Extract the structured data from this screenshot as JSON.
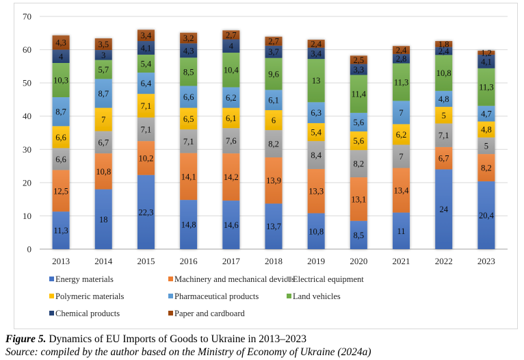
{
  "chart_data": {
    "type": "bar",
    "stacked": true,
    "title": "",
    "xlabel": "",
    "ylabel": "",
    "ylim": [
      0,
      70
    ],
    "yticks": [
      0,
      10,
      20,
      30,
      40,
      50,
      60,
      70
    ],
    "grid": true,
    "legend_position": "bottom",
    "categories": [
      "2013",
      "2014",
      "2015",
      "2016",
      "2017",
      "2018",
      "2019",
      "2020",
      "2021",
      "2022",
      "2023"
    ],
    "series": [
      {
        "name": "Energy materials",
        "color": "#4472c4",
        "values": [
          11.3,
          18,
          22.3,
          14.8,
          14.6,
          13.7,
          10.8,
          8.5,
          11,
          24,
          20.4
        ],
        "labels": [
          "11,3",
          "18",
          "22,3",
          "14,8",
          "14,6",
          "13,7",
          "10,8",
          "8,5",
          "11",
          "24",
          "20,4"
        ]
      },
      {
        "name": "Machinery and mechanical devices",
        "color": "#ed7d31",
        "values": [
          12.5,
          10.8,
          10.2,
          14.1,
          14.2,
          13.9,
          13.3,
          13.1,
          13.4,
          6.7,
          8.2
        ],
        "labels": [
          "12,5",
          "10,8",
          "10,2",
          "14,1",
          "14,2",
          "13,9",
          "13,3",
          "13,1",
          "13,4",
          "6,7",
          "8,2"
        ]
      },
      {
        "name": "Electrical equipment",
        "color": "#a5a5a5",
        "values": [
          6.6,
          6.7,
          7.1,
          7.1,
          7.6,
          8.2,
          8.4,
          8.2,
          7,
          7.1,
          5
        ],
        "labels": [
          "6,6",
          "6,7",
          "7,1",
          "7,1",
          "7,6",
          "8,2",
          "8,4",
          "8,2",
          "7",
          "7,1",
          "5"
        ]
      },
      {
        "name": "Polymeric materials",
        "color": "#ffc000",
        "values": [
          6.6,
          7,
          7.1,
          6.5,
          6.1,
          6,
          5.4,
          5.6,
          6.2,
          5,
          4.8
        ],
        "labels": [
          "6,6",
          "7",
          "7,1",
          "6,5",
          "6,1",
          "6",
          "5,4",
          "5,6",
          "6,2",
          "5",
          "4,8"
        ]
      },
      {
        "name": "Pharmaceutical products",
        "color": "#5b9bd5",
        "values": [
          8.7,
          8.7,
          6.4,
          6.6,
          6.2,
          6.1,
          6.3,
          5.6,
          7,
          4.8,
          4.7
        ],
        "labels": [
          "8,7",
          "8,7",
          "6,4",
          "6,6",
          "6,2",
          "6,1",
          "6,3",
          "5,6",
          "7",
          "4,8",
          "4,7"
        ]
      },
      {
        "name": "Land vehicles",
        "color": "#70ad47",
        "values": [
          10.3,
          5.7,
          5.4,
          8.5,
          10.4,
          9.6,
          13,
          11.4,
          11.3,
          10.8,
          11.3
        ],
        "labels": [
          "10,3",
          "5,7",
          "5,4",
          "8,5",
          "10,4",
          "9,6",
          "13",
          "11,4",
          "11,3",
          "10,8",
          "11,3"
        ]
      },
      {
        "name": "Chemical products",
        "color": "#264478",
        "values": [
          4,
          3,
          4.1,
          4.3,
          4,
          3.7,
          3.4,
          3.3,
          2.8,
          2.4,
          4.1
        ],
        "labels": [
          "4",
          "3",
          "4,1",
          "4,3",
          "4",
          "3,7",
          "3,4",
          "3,3",
          "2,8",
          "2,4",
          "4,1"
        ]
      },
      {
        "name": "Paper and cardboard",
        "color": "#9e480e",
        "values": [
          4.3,
          3.5,
          3.4,
          3.2,
          2.7,
          2.7,
          2.4,
          2.5,
          2.4,
          1.8,
          1.2
        ],
        "labels": [
          "4,3",
          "3,5",
          "3,4",
          "3,2",
          "2,7",
          "2,7",
          "2,4",
          "2,5",
          "2,4",
          "1,8",
          "1,2"
        ]
      }
    ]
  },
  "caption": {
    "figure_label": "Figure 5.",
    "figure_title": " Dynamics of EU Imports of Goods to Ukraine in 2013–2023",
    "source": "Source: compiled by the author based on the Ministry of Economy of Ukraine (2024a)"
  }
}
